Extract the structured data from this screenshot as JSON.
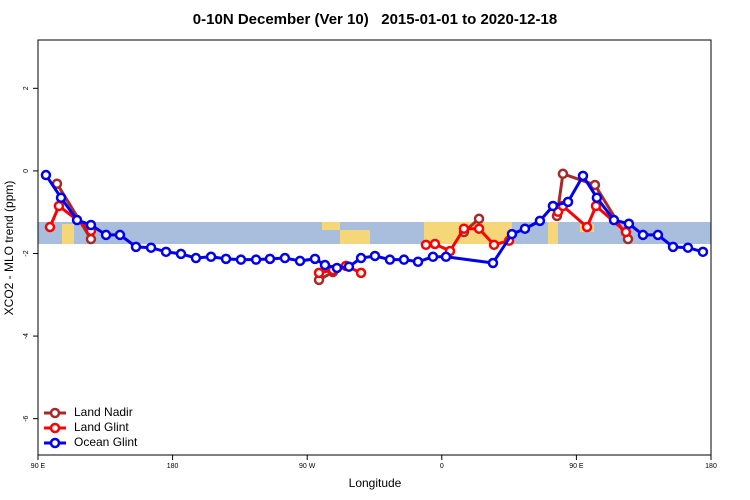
{
  "chart_data": {
    "type": "line",
    "title": "0-10N December (Ver 10)   2015-01-01 to 2020-12-18",
    "xlabel": "Longitude",
    "ylabel": "XCO2 - MLO trend (ppm)",
    "xlim": [
      90,
      540
    ],
    "xticks": [
      {
        "value": 90,
        "label": "90 E"
      },
      {
        "value": 180,
        "label": "180"
      },
      {
        "value": 270,
        "label": "90 W"
      },
      {
        "value": 360,
        "label": "0"
      },
      {
        "value": 450,
        "label": "90 E"
      },
      {
        "value": 540,
        "label": "180"
      }
    ],
    "ylim": [
      -6.88,
      3.17
    ],
    "yticks": [
      -6,
      -4,
      -2,
      0,
      2
    ],
    "legend": "bottom-left",
    "series": [
      {
        "name": "Land Nadir",
        "color": "#a52a2a",
        "x": [
          102.7,
          125.4,
          null,
          277.9,
          287.2,
          null,
          374.8,
          384.9,
          null,
          437.0,
          441.0,
          462.4,
          484.5
        ],
        "values": [
          -0.31,
          -1.65,
          null,
          -2.64,
          -2.45,
          null,
          -1.48,
          -1.16,
          null,
          -1.09,
          -0.07,
          -0.34,
          -1.65
        ]
      },
      {
        "name": "Land Glint",
        "color": "#ff0000",
        "x": [
          98.0,
          104.0,
          125.4,
          null,
          277.9,
          287.2,
          295.9,
          306.0,
          null,
          349.4,
          355.4,
          365.5,
          374.8,
          384.9,
          394.9,
          405.0,
          null,
          437.7,
          441.0,
          457.1,
          463.1,
          483.1
        ],
        "values": [
          -1.36,
          -0.85,
          -1.45,
          null,
          -2.47,
          -2.4,
          -2.3,
          -2.47,
          null,
          -1.79,
          -1.77,
          -1.94,
          -1.4,
          -1.4,
          -1.79,
          -1.69,
          null,
          -0.99,
          -0.85,
          -1.36,
          -0.85,
          -1.48
        ]
      },
      {
        "name": "Ocean Glint",
        "color": "#0000ee",
        "x": [
          95.3,
          105.4,
          116.1,
          125.4,
          135.5,
          144.8,
          155.5,
          165.6,
          175.6,
          185.6,
          195.6,
          205.7,
          215.7,
          225.7,
          235.8,
          245.1,
          255.1,
          265.2,
          275.2,
          281.9,
          289.9,
          297.9,
          306.0,
          315.3,
          325.3,
          334.7,
          344.1,
          354.1,
          362.8,
          394.2,
          406.9,
          415.6,
          425.6,
          434.3,
          444.4,
          454.4,
          463.7,
          475.1,
          485.1,
          494.5,
          504.5,
          514.6,
          524.6,
          534.6
        ],
        "values": [
          -0.1,
          -0.65,
          -1.19,
          -1.31,
          -1.55,
          -1.55,
          -1.84,
          -1.86,
          -1.96,
          -2.01,
          -2.11,
          -2.08,
          -2.13,
          -2.15,
          -2.15,
          -2.13,
          -2.11,
          -2.18,
          -2.13,
          -2.28,
          -2.35,
          -2.32,
          -2.11,
          -2.06,
          -2.15,
          -2.15,
          -2.2,
          -2.08,
          -2.08,
          -2.23,
          -1.53,
          -1.4,
          -1.21,
          -0.85,
          -0.75,
          -0.12,
          -0.65,
          -1.19,
          -1.28,
          -1.55,
          -1.55,
          -1.84,
          -1.86,
          -1.96
        ]
      }
    ]
  }
}
